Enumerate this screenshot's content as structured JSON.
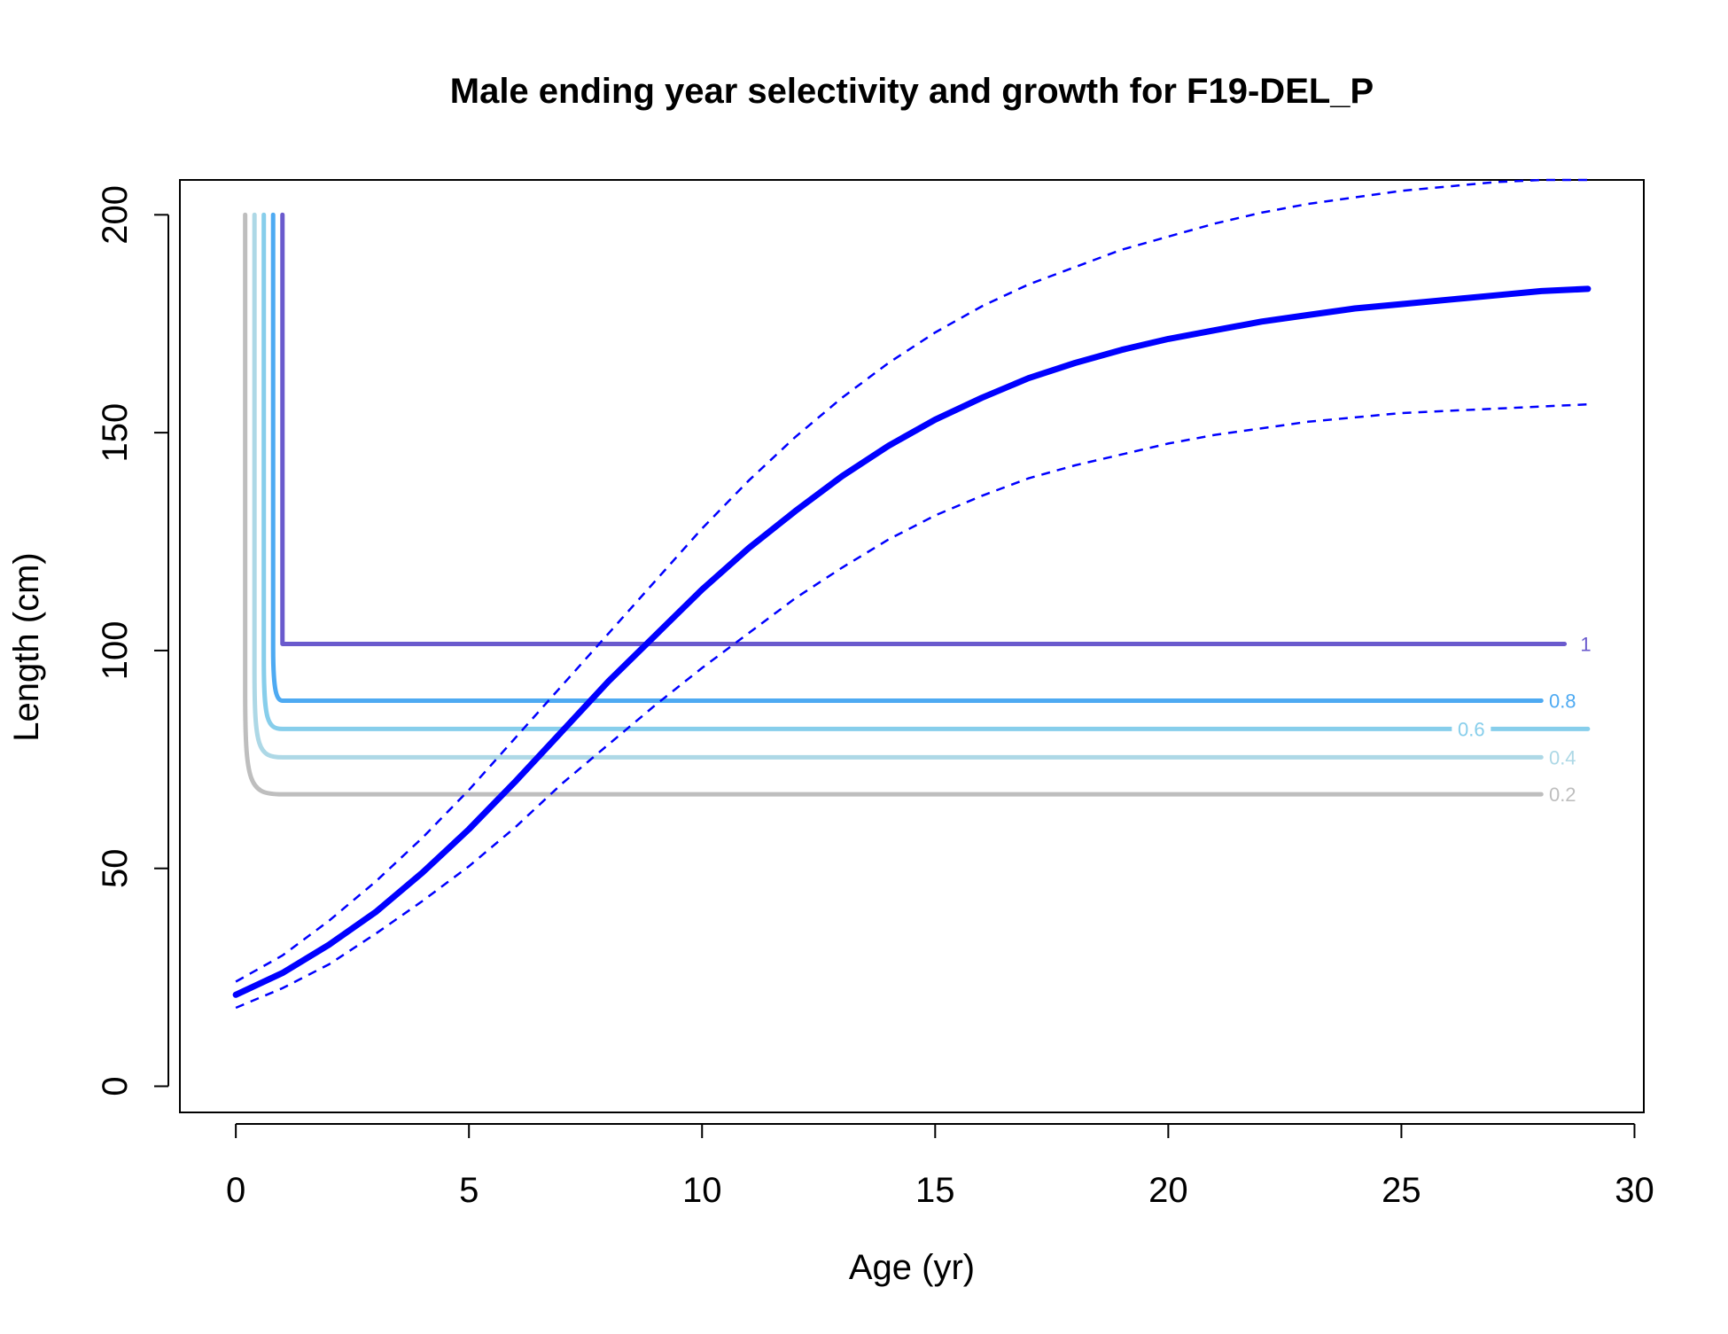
{
  "chart_data": {
    "type": "line",
    "title": "Male ending year selectivity and growth for F19-DEL_P",
    "xlabel": "Age (yr)",
    "ylabel": "Length (cm)",
    "xlim": [
      -1.2,
      30.2
    ],
    "ylim": [
      -6,
      208
    ],
    "x_ticks": [
      "0",
      "5",
      "10",
      "15",
      "20",
      "25",
      "30"
    ],
    "y_ticks": [
      "0",
      "50",
      "100",
      "150",
      "200"
    ],
    "grid": false,
    "legend": "none",
    "growth_curve": {
      "color": "#0000ff",
      "x": [
        0,
        1,
        2,
        3,
        4,
        5,
        6,
        7,
        8,
        9,
        10,
        11,
        12,
        13,
        14,
        15,
        16,
        17,
        18,
        19,
        20,
        21,
        22,
        23,
        24,
        25,
        26,
        27,
        28,
        29
      ],
      "mean": [
        21,
        26,
        32.5,
        40,
        49,
        59,
        70,
        81.5,
        93,
        103.5,
        114,
        123.5,
        132,
        140,
        147,
        153,
        158,
        162.5,
        166,
        169,
        171.5,
        173.5,
        175.5,
        177,
        178.5,
        179.5,
        180.5,
        181.5,
        182.5,
        183
      ],
      "upper": [
        24,
        30,
        38,
        47,
        57,
        68,
        80,
        92,
        104,
        116,
        128,
        139,
        149,
        158,
        166,
        173,
        179,
        184,
        188,
        192,
        195,
        198,
        200.5,
        202.5,
        204,
        205.5,
        206.5,
        207.5,
        208,
        208
      ],
      "lower": [
        18,
        22.5,
        28,
        35,
        42.5,
        50.5,
        59.5,
        69.5,
        78.5,
        87.5,
        96,
        104,
        112,
        119,
        125.5,
        131,
        135.5,
        139.5,
        142.5,
        145,
        147.5,
        149.5,
        151,
        152.5,
        153.5,
        154.5,
        155,
        155.5,
        156,
        156.5
      ]
    },
    "selectivity_contours": [
      {
        "level": "0.2",
        "color": "#bebebe",
        "x0": 0.2,
        "length": 67,
        "x_end": 28
      },
      {
        "level": "0.4",
        "color": "#add8e6",
        "x0": 0.4,
        "length": 75.5,
        "x_end": 28
      },
      {
        "level": "0.6",
        "color": "#87ceeb",
        "x0": 0.6,
        "length": 82,
        "x_end": 29
      },
      {
        "level": "0.8",
        "color": "#4eaaf2",
        "x0": 0.8,
        "length": 88.5,
        "x_end": 28
      },
      {
        "level": "1",
        "color": "#6a5acd",
        "x0": 1,
        "length": 101.5,
        "x_end": 28.5
      }
    ]
  }
}
